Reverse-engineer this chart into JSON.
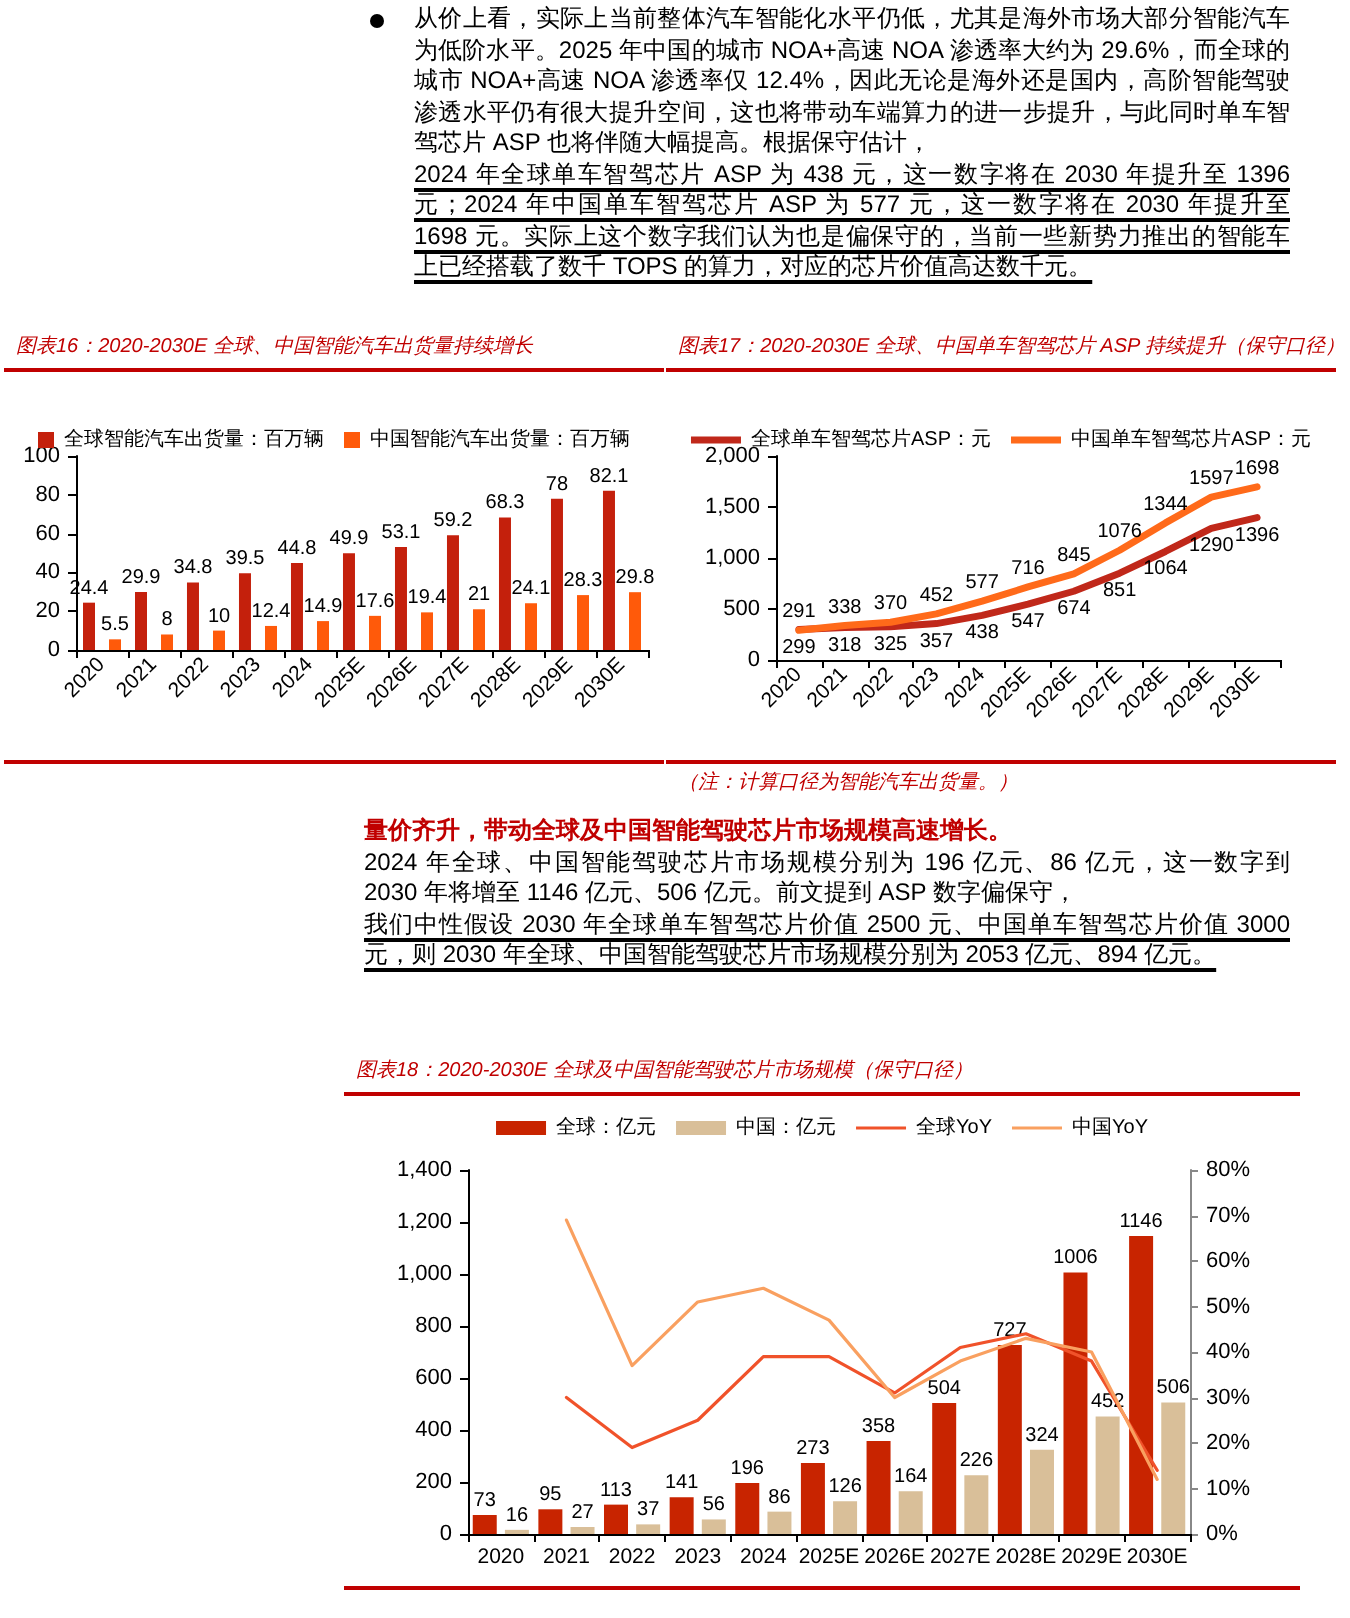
{
  "chart_data": [
    {
      "type": "other",
      "annotations": [
        "从价上看，实际上当前整体汽车智能化水平仍低，尤其是海外市场大部分智能汽车为低阶水平。2025 年中国的城市 NOA+高速 NOA 渗透率大约为 29.6%，而全球的城市 NOA+高速 NOA 渗透率仅 12.4%，因此无论是海外还是国内，高阶智能驾驶渗透水平仍有很大提升空间，这也将带动车端算力的进一步提升，与此同时单车智驾芯片 ASP 也将伴随大幅提高。根据保守估计，",
        "2024 年全球单车智驾芯片 ASP 为 438 元，这一数字将在 2030 年提升至 1396 元；2024 年中国单车智驾芯片 ASP 为 577 元，这一数字将在 2030 年提升至 1698 元。实际上这个数字我们认为也是偏保守的，当前一些新势力推出的智能车上已经搭载了数千 TOPS 的算力，对应的芯片价值高达数千元。"
      ]
    },
    {
      "type": "bar",
      "title": "图表16：2020-2030E 全球、中国智能汽车出货量持续增长",
      "categories": [
        "2020",
        "2021",
        "2022",
        "2023",
        "2024",
        "2025E",
        "2026E",
        "2027E",
        "2028E",
        "2029E",
        "2030E"
      ],
      "series": [
        {
          "name": "全球智能汽车出货量：百万辆",
          "color": "#c4200c",
          "values": [
            24.4,
            29.9,
            34.8,
            39.5,
            44.8,
            49.9,
            53.1,
            59.2,
            68.3,
            78,
            82.1
          ]
        },
        {
          "name": "中国智能汽车出货量：百万辆",
          "color": "#ff5a0a",
          "values": [
            5.5,
            8,
            10,
            12.4,
            14.9,
            17.6,
            19.4,
            21,
            24.1,
            28.3,
            29.8
          ]
        }
      ],
      "ylim": [
        0,
        100
      ],
      "yticks": [
        0,
        20,
        40,
        60,
        80,
        100
      ],
      "data_labels": true,
      "legend": "top"
    },
    {
      "type": "line",
      "title": "图表17：2020-2030E 全球、中国单车智驾芯片 ASP 持续提升（保守口径）",
      "categories": [
        "2020",
        "2021",
        "2022",
        "2023",
        "2024",
        "2025E",
        "2026E",
        "2027E",
        "2028E",
        "2029E",
        "2030E"
      ],
      "series": [
        {
          "name": "全球单车智驾芯片ASP：元",
          "color": "#c0281a",
          "values": [
            299,
            318,
            325,
            357,
            438,
            547,
            674,
            851,
            1064,
            1290,
            1396
          ]
        },
        {
          "name": "中国单车智驾芯片ASP：元",
          "color": "#ff6a1a",
          "values": [
            291,
            338,
            370,
            452,
            577,
            716,
            845,
            1076,
            1344,
            1597,
            1698
          ]
        }
      ],
      "ylim": [
        0,
        2000
      ],
      "yticks": [
        0,
        500,
        {
          "value": 1000,
          "label": "1,000"
        },
        {
          "value": 1500,
          "label": "1,500"
        },
        {
          "value": 2000,
          "label": "2,000"
        }
      ],
      "data_labels": true,
      "legend": "top",
      "annotations": [
        "（注：计算口径为智能汽车出货量。）"
      ]
    },
    {
      "type": "other",
      "title": "量价齐升，带动全球及中国智能驾驶芯片市场规模高速增长。",
      "annotations": [
        "2024 年全球、中国智能驾驶芯片市场规模分别为 196 亿元、86 亿元，这一数字到 2030 年将增至 1146 亿元、506 亿元。前文提到 ASP 数字偏保守，",
        "我们中性假设 2030 年全球单车智驾芯片价值 2500 元、中国单车智驾芯片价值 3000 元，则 2030 年全球、中国智能驾驶芯片市场规模分别为 2053 亿元、894 亿元。"
      ]
    },
    {
      "type": "bar",
      "title": "图表18：2020-2030E 全球及中国智能驾驶芯片市场规模（保守口径）",
      "categories": [
        "2020",
        "2021",
        "2022",
        "2023",
        "2024",
        "2025E",
        "2026E",
        "2027E",
        "2028E",
        "2029E",
        "2030E"
      ],
      "series": [
        {
          "name": "全球：亿元",
          "color": "#c82400",
          "values": [
            73,
            95,
            113,
            141,
            196,
            273,
            358,
            504,
            727,
            1006,
            1146
          ],
          "value_labels": [
            "73",
            "95",
            "113",
            "141",
            "196",
            "273",
            "358",
            "504",
            "727",
            "1006",
            "1146"
          ]
        },
        {
          "name": "中国：亿元",
          "color": "#d9bf99",
          "values": [
            16,
            27,
            37,
            56,
            86,
            126,
            164,
            226,
            324,
            452,
            506
          ],
          "value_labels": [
            "16",
            "27",
            "37",
            "56",
            "86",
            "126",
            "164",
            "226",
            "324",
            "452",
            "506"
          ]
        },
        {
          "name": "全球YoY",
          "type": "line",
          "axis": "y2",
          "color": "#f0522a",
          "values": [
            null,
            30,
            19,
            25,
            39,
            39,
            31,
            41,
            44,
            38,
            14
          ]
        },
        {
          "name": "中国YoY",
          "type": "line",
          "axis": "y2",
          "color": "#f9a060",
          "values": [
            null,
            69,
            37,
            51,
            54,
            47,
            30,
            38,
            43,
            40,
            12
          ]
        }
      ],
      "ylim": [
        0,
        1400
      ],
      "yticks": [
        0,
        200,
        400,
        600,
        800,
        {
          "value": 1000,
          "label": "1,000"
        },
        {
          "value": 1200,
          "label": "1,200"
        },
        {
          "value": 1400,
          "label": "1,400"
        }
      ],
      "y2lim": [
        0,
        80
      ],
      "y2ticks": [
        {
          "value": 0,
          "label": "0%"
        },
        {
          "value": 10,
          "label": "10%"
        },
        {
          "value": 20,
          "label": "20%"
        },
        {
          "value": 30,
          "label": "30%"
        },
        {
          "value": 40,
          "label": "40%"
        },
        {
          "value": 50,
          "label": "50%"
        },
        {
          "value": 60,
          "label": "60%"
        },
        {
          "value": 70,
          "label": "70%"
        },
        {
          "value": 80,
          "label": "80%"
        }
      ],
      "legend": "top"
    }
  ]
}
